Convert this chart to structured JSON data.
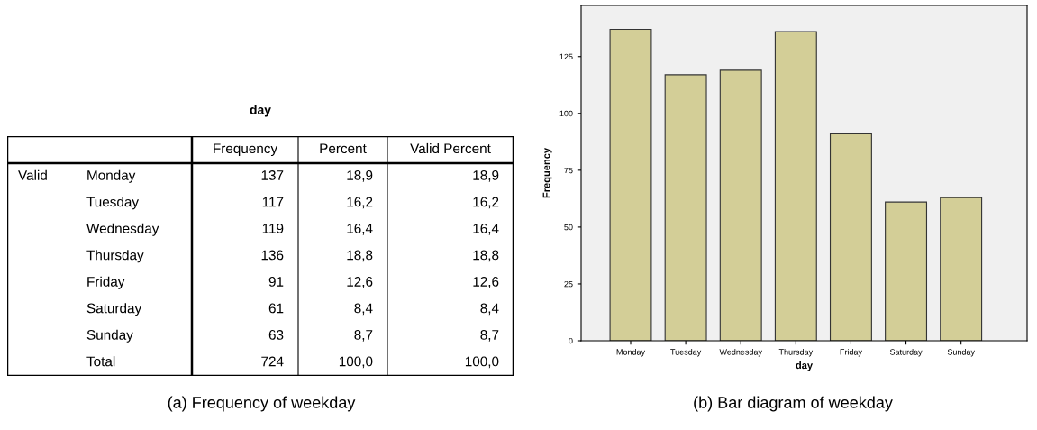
{
  "chart_data": [
    {
      "type": "other",
      "title": "day",
      "categories": [
        "Frequency",
        "Percent",
        "Valid Percent"
      ],
      "y2_categories": [
        "Valid",
        null,
        null,
        null,
        null,
        null,
        null,
        null
      ],
      "y_categories": [
        "Monday",
        "Tuesday",
        "Wednesday",
        "Thursday",
        "Friday",
        "Saturday",
        "Sunday",
        "Total"
      ],
      "cell_labels": [
        [
          "137",
          "18,9",
          "18,9"
        ],
        [
          "117",
          "16,2",
          "16,2"
        ],
        [
          "119",
          "16,4",
          "16,4"
        ],
        [
          "136",
          "18,8",
          "18,8"
        ],
        [
          "91",
          "12,6",
          "12,6"
        ],
        [
          "61",
          "8,4",
          "8,4"
        ],
        [
          "63",
          "8,7",
          "8,7"
        ],
        [
          "724",
          "100,0",
          "100,0"
        ]
      ],
      "annotations": [
        "(a) Frequency of weekday"
      ]
    },
    {
      "type": "bar",
      "categories": [
        "Monday",
        "Tuesday",
        "Wednesday",
        "Thursday",
        "Friday",
        "Saturday",
        "Sunday"
      ],
      "values": [
        137,
        117,
        119,
        136,
        91,
        61,
        63
      ],
      "color": "#d3ce97",
      "xlabel": "day",
      "ylabel": "Frequency",
      "ylim": [
        0,
        147.5
      ],
      "yticks": [
        0,
        25,
        50,
        75,
        100,
        125
      ],
      "grid": false,
      "annotations": [
        "(b) Bar diagram of weekday"
      ]
    }
  ]
}
